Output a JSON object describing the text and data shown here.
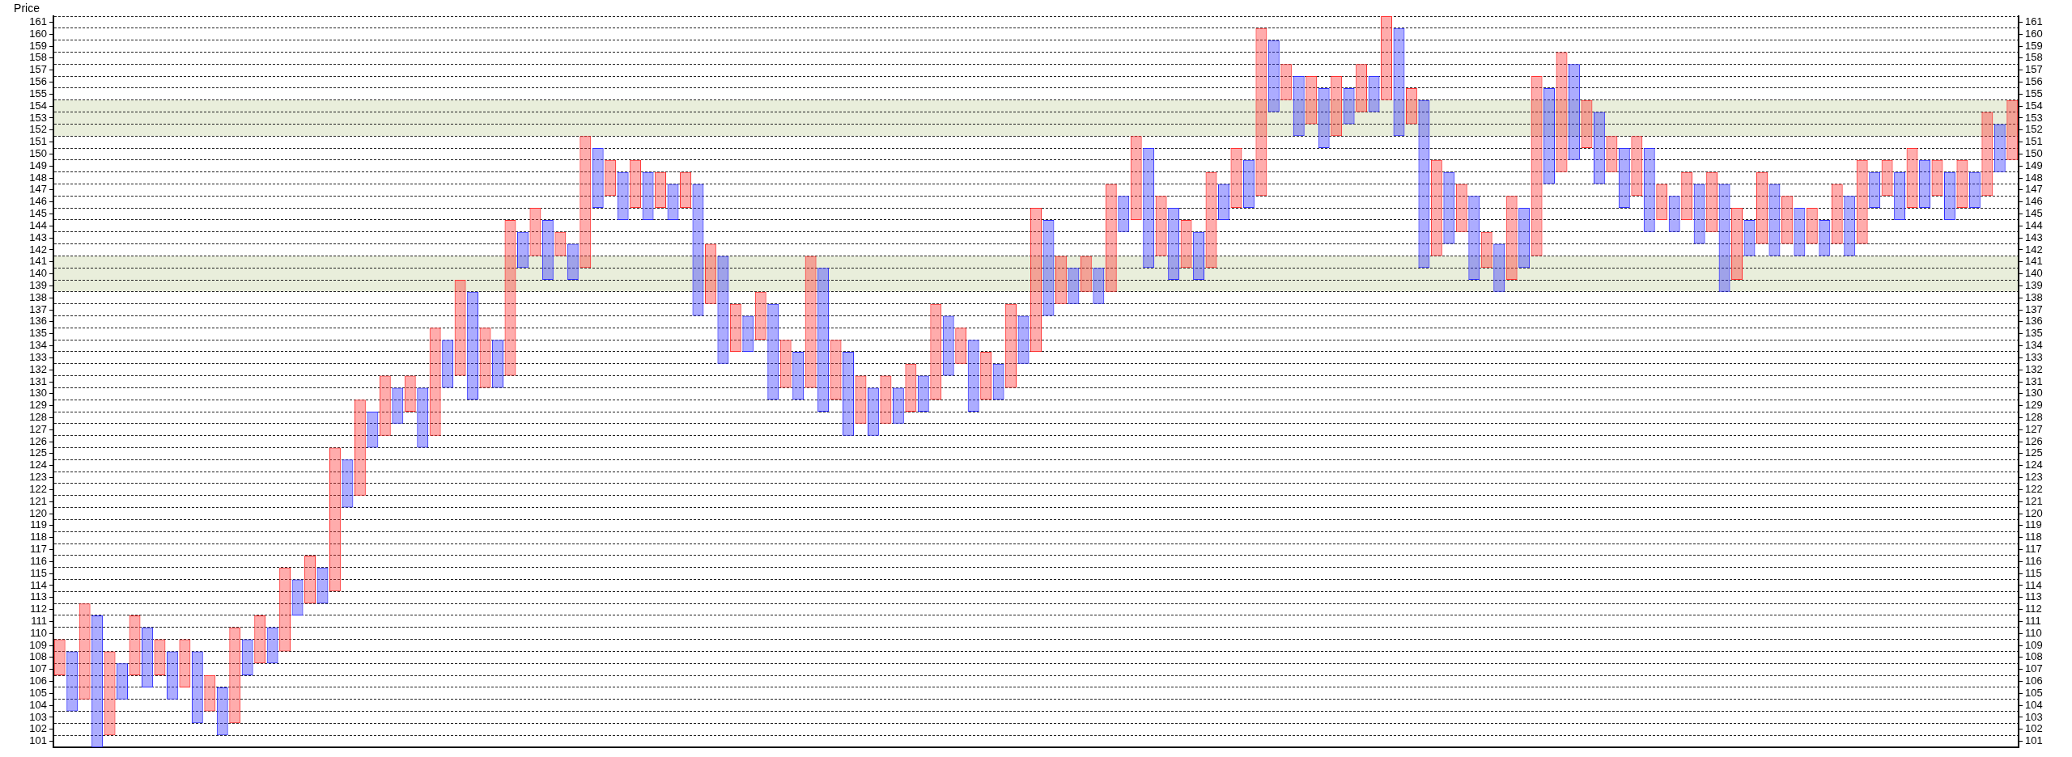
{
  "chart_data": {
    "type": "bar",
    "ylabel": "Price",
    "categories": [
      null,
      null,
      null,
      null,
      null,
      null,
      null,
      null,
      null,
      null,
      null,
      null,
      null,
      null,
      null,
      null,
      null,
      null,
      null,
      null,
      null,
      null,
      null,
      null,
      null,
      null,
      null,
      null,
      null,
      null,
      null,
      null,
      null,
      null,
      null,
      null,
      null,
      null,
      null,
      null,
      null,
      null,
      null,
      null,
      null,
      null,
      null,
      null,
      null,
      null,
      null,
      null,
      null,
      null,
      null,
      null,
      null,
      null,
      null,
      null,
      null,
      null,
      null,
      null,
      null,
      null,
      null,
      null,
      null,
      null,
      null,
      null,
      null,
      null,
      null,
      null,
      null,
      null,
      null,
      null,
      null,
      null,
      null,
      null,
      null,
      null,
      null,
      null,
      null,
      null,
      null,
      null,
      null,
      null,
      null,
      null,
      null,
      null,
      null,
      null,
      null,
      null,
      null,
      null,
      null,
      null,
      null,
      null,
      null,
      null,
      null,
      null,
      null,
      null,
      null,
      null,
      null,
      null,
      null,
      null,
      null,
      null,
      null,
      null,
      null,
      null,
      null,
      null,
      null,
      null,
      null,
      null,
      null,
      null,
      null,
      null,
      null,
      null,
      null,
      null,
      null,
      null,
      null,
      null,
      null,
      null,
      null,
      null,
      null,
      null,
      null,
      null,
      null,
      null,
      null,
      null,
      null
    ],
    "series": [
      {
        "color": "#ff3030",
        "base": [
          106.5,
          null,
          104.5,
          null,
          101.5,
          null,
          106.5,
          null,
          106.5,
          null,
          105.5,
          null,
          103.5,
          null,
          102.5,
          null,
          107.5,
          null,
          108.5,
          null,
          112.5,
          null,
          113.5,
          null,
          121.5,
          null,
          126.5,
          null,
          128.5,
          null,
          126.5,
          null,
          131.5,
          null,
          130.5,
          null,
          131.5,
          null,
          141.5,
          null,
          141.5,
          null,
          140.5,
          null,
          146.5,
          null,
          145.5,
          null,
          145.5,
          null,
          145.5,
          null,
          137.5,
          null,
          133.5,
          null,
          134.5,
          null,
          130.5,
          null,
          130.5,
          null,
          129.5,
          null,
          127.5,
          null,
          127.5,
          null,
          128.5,
          null,
          129.5,
          null,
          132.5,
          null,
          129.5,
          null,
          130.5,
          null,
          133.5,
          null,
          137.5,
          null,
          138.5,
          null,
          138.5,
          null,
          144.5,
          null,
          141.5,
          null,
          140.5,
          null,
          140.5,
          null,
          145.5,
          null,
          146.5,
          null,
          154.5,
          null,
          152.5,
          null,
          151.5,
          null,
          153.5,
          null,
          154.5,
          null,
          152.5,
          null,
          141.5,
          null,
          143.5,
          null,
          140.5,
          null,
          139.5,
          null,
          141.5,
          null,
          148.5,
          null,
          150.5,
          null,
          148.5,
          null,
          146.5,
          null,
          144.5,
          null,
          144.5,
          null,
          143.5,
          null,
          139.5,
          null,
          142.5,
          null,
          142.5,
          null,
          142.5,
          null,
          142.5,
          null,
          142.5,
          null,
          146.5,
          null,
          145.5,
          null,
          146.5,
          null,
          145.5,
          null,
          146.5,
          null,
          149.5
        ],
        "values": [
          3,
          null,
          8,
          null,
          7,
          null,
          5,
          null,
          3,
          null,
          4,
          null,
          3,
          null,
          8,
          null,
          4,
          null,
          7,
          null,
          4,
          null,
          12,
          null,
          8,
          null,
          5,
          null,
          3,
          null,
          9,
          null,
          8,
          null,
          5,
          null,
          13,
          null,
          4,
          null,
          2,
          null,
          11,
          null,
          3,
          null,
          4,
          null,
          3,
          null,
          3,
          null,
          5,
          null,
          4,
          null,
          4,
          null,
          4,
          null,
          11,
          null,
          5,
          null,
          4,
          null,
          4,
          null,
          4,
          null,
          8,
          null,
          3,
          null,
          4,
          null,
          7,
          null,
          12,
          null,
          4,
          null,
          3,
          null,
          9,
          null,
          7,
          null,
          5,
          null,
          4,
          null,
          8,
          null,
          5,
          null,
          14,
          null,
          3,
          null,
          4,
          null,
          5,
          null,
          4,
          null,
          7,
          null,
          3,
          null,
          8,
          null,
          4,
          null,
          3,
          null,
          7,
          null,
          15,
          null,
          10,
          null,
          4,
          null,
          3,
          null,
          5,
          null,
          3,
          null,
          4,
          null,
          5,
          null,
          6,
          null,
          6,
          null,
          4,
          null,
          3,
          null,
          5,
          null,
          7,
          null,
          3,
          null,
          5,
          null,
          3,
          null,
          4,
          null,
          7,
          null,
          5
        ]
      },
      {
        "color": "#3030ff",
        "base": [
          null,
          103.5,
          null,
          100.5,
          null,
          104.5,
          null,
          105.5,
          null,
          104.5,
          null,
          102.5,
          null,
          101.5,
          null,
          106.5,
          null,
          107.5,
          null,
          111.5,
          null,
          112.5,
          null,
          120.5,
          null,
          125.5,
          null,
          127.5,
          null,
          125.5,
          null,
          130.5,
          null,
          129.5,
          null,
          130.5,
          null,
          140.5,
          null,
          139.5,
          null,
          139.5,
          null,
          145.5,
          null,
          144.5,
          null,
          144.5,
          null,
          144.5,
          null,
          136.5,
          null,
          132.5,
          null,
          133.5,
          null,
          129.5,
          null,
          129.5,
          null,
          128.5,
          null,
          126.5,
          null,
          126.5,
          null,
          127.5,
          null,
          128.5,
          null,
          131.5,
          null,
          128.5,
          null,
          129.5,
          null,
          132.5,
          null,
          136.5,
          null,
          137.5,
          null,
          137.5,
          null,
          143.5,
          null,
          140.5,
          null,
          139.5,
          null,
          139.5,
          null,
          144.5,
          null,
          145.5,
          null,
          153.5,
          null,
          151.5,
          null,
          150.5,
          null,
          152.5,
          null,
          153.5,
          null,
          151.5,
          null,
          140.5,
          null,
          142.5,
          null,
          139.5,
          null,
          138.5,
          null,
          140.5,
          null,
          147.5,
          null,
          149.5,
          null,
          147.5,
          null,
          145.5,
          null,
          143.5,
          null,
          143.5,
          null,
          142.5,
          null,
          138.5,
          null,
          141.5,
          null,
          141.5,
          null,
          141.5,
          null,
          141.5,
          null,
          141.5,
          null,
          145.5,
          null,
          144.5,
          null,
          145.5,
          null,
          144.5,
          null,
          145.5,
          null,
          148.5,
          null
        ],
        "values": [
          null,
          5,
          null,
          11,
          null,
          3,
          null,
          5,
          null,
          4,
          null,
          6,
          null,
          4,
          null,
          3,
          null,
          3,
          null,
          3,
          null,
          3,
          null,
          4,
          null,
          3,
          null,
          3,
          null,
          5,
          null,
          4,
          null,
          9,
          null,
          4,
          null,
          3,
          null,
          5,
          null,
          3,
          null,
          5,
          null,
          4,
          null,
          4,
          null,
          3,
          null,
          11,
          null,
          9,
          null,
          3,
          null,
          8,
          null,
          4,
          null,
          12,
          null,
          7,
          null,
          4,
          null,
          3,
          null,
          3,
          null,
          5,
          null,
          6,
          null,
          3,
          null,
          4,
          null,
          8,
          null,
          3,
          null,
          3,
          null,
          3,
          null,
          10,
          null,
          6,
          null,
          4,
          null,
          3,
          null,
          4,
          null,
          6,
          null,
          5,
          null,
          5,
          null,
          3,
          null,
          3,
          null,
          9,
          null,
          14,
          null,
          6,
          null,
          7,
          null,
          4,
          null,
          5,
          null,
          8,
          null,
          8,
          null,
          6,
          null,
          5,
          null,
          7,
          null,
          3,
          null,
          5,
          null,
          9,
          null,
          3,
          null,
          6,
          null,
          4,
          null,
          3,
          null,
          5,
          null,
          3,
          null,
          4,
          null,
          4,
          null,
          4,
          null,
          3,
          null,
          4,
          null
        ]
      }
    ],
    "ylim": [
      100.5,
      161.5
    ],
    "yticks": [
      {
        "value": 100.5,
        "label": null
      },
      101,
      {
        "value": 101.5,
        "label": null
      },
      102,
      {
        "value": 102.5,
        "label": null
      },
      103,
      {
        "value": 103.5,
        "label": null
      },
      104,
      {
        "value": 104.5,
        "label": null
      },
      105,
      {
        "value": 105.5,
        "label": null
      },
      106,
      {
        "value": 106.5,
        "label": null
      },
      107,
      {
        "value": 107.5,
        "label": null
      },
      108,
      {
        "value": 108.5,
        "label": null
      },
      109,
      {
        "value": 109.5,
        "label": null
      },
      110,
      {
        "value": 110.5,
        "label": null
      },
      111,
      {
        "value": 111.5,
        "label": null
      },
      112,
      {
        "value": 112.5,
        "label": null
      },
      113,
      {
        "value": 113.5,
        "label": null
      },
      114,
      {
        "value": 114.5,
        "label": null
      },
      115,
      {
        "value": 115.5,
        "label": null
      },
      116,
      {
        "value": 116.5,
        "label": null
      },
      117,
      {
        "value": 117.5,
        "label": null
      },
      118,
      {
        "value": 118.5,
        "label": null
      },
      119,
      {
        "value": 119.5,
        "label": null
      },
      120,
      {
        "value": 120.5,
        "label": null
      },
      121,
      {
        "value": 121.5,
        "label": null
      },
      122,
      {
        "value": 122.5,
        "label": null
      },
      123,
      {
        "value": 123.5,
        "label": null
      },
      124,
      {
        "value": 124.5,
        "label": null
      },
      125,
      {
        "value": 125.5,
        "label": null
      },
      126,
      {
        "value": 126.5,
        "label": null
      },
      127,
      {
        "value": 127.5,
        "label": null
      },
      128,
      {
        "value": 128.5,
        "label": null
      },
      129,
      {
        "value": 129.5,
        "label": null
      },
      130,
      {
        "value": 130.5,
        "label": null
      },
      131,
      {
        "value": 131.5,
        "label": null
      },
      132,
      {
        "value": 132.5,
        "label": null
      },
      133,
      {
        "value": 133.5,
        "label": null
      },
      134,
      {
        "value": 134.5,
        "label": null
      },
      135,
      {
        "value": 135.5,
        "label": null
      },
      136,
      {
        "value": 136.5,
        "label": null
      },
      137,
      {
        "value": 137.5,
        "label": null
      },
      138,
      {
        "value": 138.5,
        "label": null
      },
      139,
      {
        "value": 139.5,
        "label": null
      },
      140,
      {
        "value": 140.5,
        "label": null
      },
      141,
      {
        "value": 141.5,
        "label": null
      },
      142,
      {
        "value": 142.5,
        "label": null
      },
      143,
      {
        "value": 143.5,
        "label": null
      },
      144,
      {
        "value": 144.5,
        "label": null
      },
      145,
      {
        "value": 145.5,
        "label": null
      },
      146,
      {
        "value": 146.5,
        "label": null
      },
      147,
      {
        "value": 147.5,
        "label": null
      },
      148,
      {
        "value": 148.5,
        "label": null
      },
      149,
      {
        "value": 149.5,
        "label": null
      },
      150,
      {
        "value": 150.5,
        "label": null
      },
      151,
      {
        "value": 151.5,
        "label": null
      },
      152,
      {
        "value": 152.5,
        "label": null
      },
      153,
      {
        "value": 153.5,
        "label": null
      },
      154,
      {
        "value": 154.5,
        "label": null
      },
      155,
      {
        "value": 155.5,
        "label": null
      },
      156,
      {
        "value": 156.5,
        "label": null
      },
      157,
      {
        "value": 157.5,
        "label": null
      },
      158,
      {
        "value": 158.5,
        "label": null
      },
      159,
      {
        "value": 159.5,
        "label": null
      },
      160,
      {
        "value": 160.5,
        "label": null
      },
      161,
      {
        "value": 161.5,
        "label": null
      }
    ],
    "y2lim": [
      100.5,
      161.5
    ],
    "y2ticks": [
      101,
      102,
      103,
      104,
      105,
      106,
      107,
      108,
      109,
      110,
      111,
      112,
      113,
      114,
      115,
      116,
      117,
      118,
      119,
      120,
      121,
      122,
      123,
      124,
      125,
      126,
      127,
      128,
      129,
      130,
      131,
      132,
      133,
      134,
      135,
      136,
      137,
      138,
      139,
      140,
      141,
      142,
      143,
      144,
      145,
      146,
      147,
      148,
      149,
      150,
      151,
      152,
      153,
      154,
      155,
      156,
      157,
      158,
      159,
      160,
      161
    ],
    "bands": [
      {
        "axis": "y",
        "from": 151.5,
        "to": 154.5,
        "color": "#e9eedb"
      },
      {
        "axis": "y",
        "from": 138.5,
        "to": 141.5,
        "color": "#e9eedb"
      }
    ],
    "grid": "y",
    "tick_labels": "y"
  }
}
